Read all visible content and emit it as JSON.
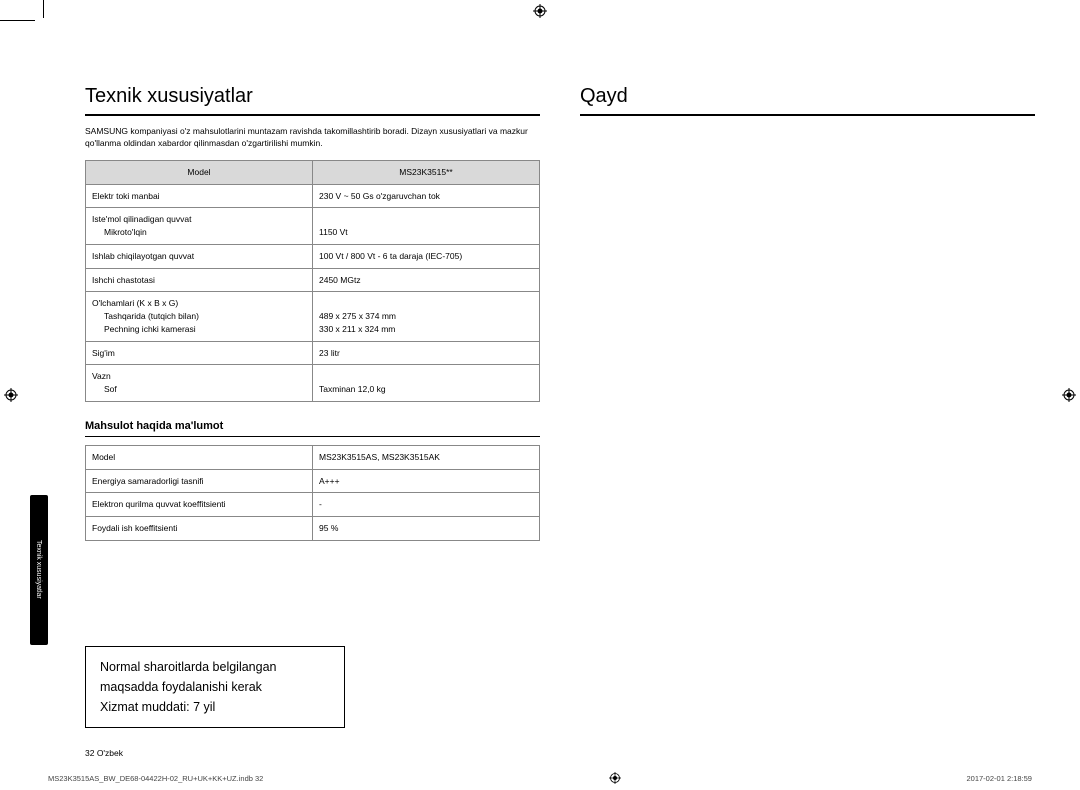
{
  "left": {
    "title": "Texnik xususiyatlar",
    "intro": "SAMSUNG kompaniyasi o'z mahsulotlarini muntazam ravishda takomillashtirib boradi. Dizayn xususiyatlari va mazkur qo'llanma oldindan xabardor qilinmasdan o'zgartirilishi mumkin.",
    "table1": {
      "header_left": "Model",
      "header_right": "MS23K3515**",
      "rows": [
        {
          "l": "Elektr toki manbai",
          "r": "230 V ~ 50 Gs o'zgaruvchan tok"
        },
        {
          "l": "Iste'mol qilinadigan quvvat\n  Mikroto'lqin",
          "r": "\n1150 Vt"
        },
        {
          "l": "Ishlab chiqilayotgan quvvat",
          "r": "100 Vt / 800 Vt - 6 ta daraja (IEC-705)"
        },
        {
          "l": "Ishchi chastotasi",
          "r": "2450 MGtz"
        },
        {
          "l": "O'lchamlari (K x B x G)\n  Tashqarida (tutqich bilan)\n  Pechning ichki kamerasi",
          "r": "\n489 x 275 x 374 mm\n330 x 211 x 324 mm"
        },
        {
          "l": "Sig'im",
          "r": "23 litr"
        },
        {
          "l": "Vazn\n  Sof",
          "r": "\nTaxminan 12,0 kg"
        }
      ]
    },
    "subhead": "Mahsulot haqida ma'lumot",
    "table2": {
      "rows": [
        {
          "l": "Model",
          "r": "MS23K3515AS, MS23K3515AK"
        },
        {
          "l": "Energiya samaradorligi tasnifi",
          "r": "A+++"
        },
        {
          "l": "Elektron qurilma quvvat koeffitsienti",
          "r": "-"
        },
        {
          "l": "Foydali ish koeffitsienti",
          "r": "95 %"
        }
      ]
    },
    "notice": "Normal sharoitlarda belgilangan maqsadda foydalanishi kerak\nXizmat muddati: 7 yil"
  },
  "right": {
    "title": "Qayd"
  },
  "sidetab": "Texnik xususiyatlar",
  "pagenum": "32  O'zbek",
  "footer_left": "MS23K3515AS_BW_DE68-04422H-02_RU+UK+KK+UZ.indb   32",
  "footer_right": "2017-02-01   2:18:59"
}
